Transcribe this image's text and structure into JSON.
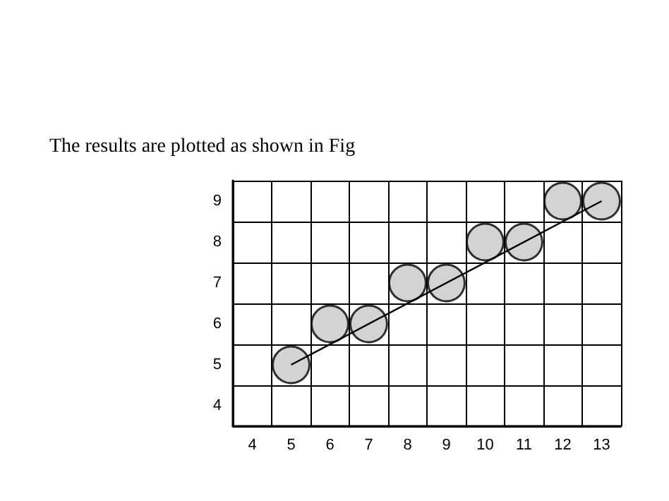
{
  "chart_data": {
    "type": "scatter",
    "title": "The results are plotted as shown in Fig",
    "x": [
      5,
      6,
      7,
      8,
      9,
      10,
      11,
      12,
      13
    ],
    "series": [
      {
        "color": "#c8c8c8",
        "values": [
          5,
          6,
          6,
          7,
          7,
          8,
          8,
          9,
          9
        ]
      },
      {
        "type": "line",
        "color": "#000000",
        "marker": "none",
        "x": [
          5,
          13
        ],
        "values": [
          5,
          9
        ]
      }
    ],
    "xlim": [
      3.5,
      13.5
    ],
    "xticks": [
      {
        "value": 3.5,
        "label": null
      },
      4,
      {
        "value": 4.5,
        "label": null
      },
      5,
      {
        "value": 5.5,
        "label": null
      },
      6,
      {
        "value": 6.5,
        "label": null
      },
      7,
      {
        "value": 7.5,
        "label": null
      },
      8,
      {
        "value": 8.5,
        "label": null
      },
      9,
      {
        "value": 9.5,
        "label": null
      },
      10,
      {
        "value": 10.5,
        "label": null
      },
      11,
      {
        "value": 11.5,
        "label": null
      },
      12,
      {
        "value": 12.5,
        "label": null
      },
      13,
      {
        "value": 13.5,
        "label": null
      }
    ],
    "ylim": [
      3.5,
      9.5
    ],
    "yticks": [
      {
        "value": 3.5,
        "label": null
      },
      4,
      {
        "value": 4.5,
        "label": null
      },
      5,
      {
        "value": 5.5,
        "label": null
      },
      6,
      {
        "value": 6.5,
        "label": null
      },
      7,
      {
        "value": 7.5,
        "label": null
      },
      8,
      {
        "value": 8.5,
        "label": null
      },
      9,
      {
        "value": 9.5,
        "label": null
      }
    ],
    "grid": true,
    "marker": "circle",
    "line_style": "solid"
  }
}
